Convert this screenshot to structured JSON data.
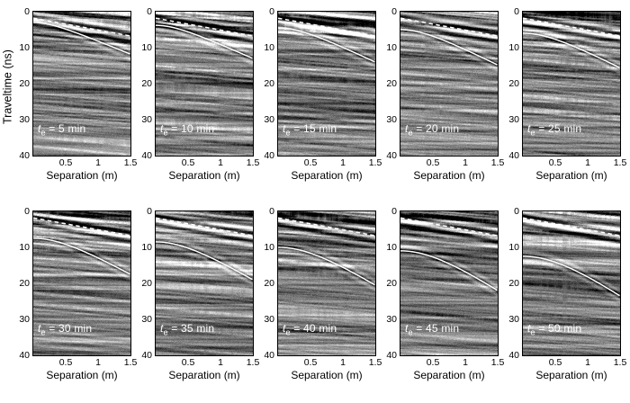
{
  "chart_data": {
    "type": "heatmap",
    "title": "",
    "layout": {
      "rows": 2,
      "cols": 5
    },
    "x_axis": {
      "label": "Separation (m)",
      "range": [
        0,
        1.5
      ],
      "tick_values": [
        0.5,
        1.0,
        1.5
      ],
      "tick_labels": [
        "0.5",
        "1",
        "1.5"
      ]
    },
    "y_axis": {
      "label": "Traveltime (ns)",
      "range": [
        0,
        40
      ],
      "tick_values": [
        0,
        10,
        20,
        30,
        40
      ],
      "tick_labels": [
        "0",
        "10",
        "20",
        "30",
        "40"
      ],
      "direction": "down"
    },
    "panel_label": {
      "variable": "t",
      "subscript": "e",
      "unit": "min"
    },
    "overlays": {
      "airwave": {
        "style": "dashed",
        "color": "#ffffff",
        "t0_ns": 1.8,
        "slope_ns_per_m": 3.3
      },
      "reflection": {
        "style": "solid",
        "color": "#ffffff"
      }
    },
    "panels": [
      {
        "label": "t_e = 5 min",
        "te_min": 5,
        "reflection_t0_ns": 3.0,
        "reflection_t_end_ns": 11.8
      },
      {
        "label": "t_e = 10 min",
        "te_min": 10,
        "reflection_t0_ns": 3.8,
        "reflection_t_end_ns": 13.0
      },
      {
        "label": "t_e = 15 min",
        "te_min": 15,
        "reflection_t0_ns": 4.5,
        "reflection_t_end_ns": 14.0
      },
      {
        "label": "t_e = 20 min",
        "te_min": 20,
        "reflection_t0_ns": 5.0,
        "reflection_t_end_ns": 14.8
      },
      {
        "label": "t_e = 25 min",
        "te_min": 25,
        "reflection_t0_ns": 6.0,
        "reflection_t_end_ns": 15.6
      },
      {
        "label": "t_e = 30 min",
        "te_min": 30,
        "reflection_t0_ns": 7.5,
        "reflection_t_end_ns": 17.5
      },
      {
        "label": "t_e = 35 min",
        "te_min": 35,
        "reflection_t0_ns": 8.5,
        "reflection_t_end_ns": 19.0
      },
      {
        "label": "t_e = 40 min",
        "te_min": 40,
        "reflection_t0_ns": 10.0,
        "reflection_t_end_ns": 20.5
      },
      {
        "label": "t_e = 45 min",
        "te_min": 45,
        "reflection_t0_ns": 11.0,
        "reflection_t_end_ns": 22.0
      },
      {
        "label": "t_e = 50 min",
        "te_min": 50,
        "reflection_t0_ns": 12.5,
        "reflection_t_end_ns": 23.5
      }
    ],
    "background": {
      "description": "grayscale radargram (GPR gather) noise",
      "mid_gray": "#7f7f7f"
    }
  }
}
